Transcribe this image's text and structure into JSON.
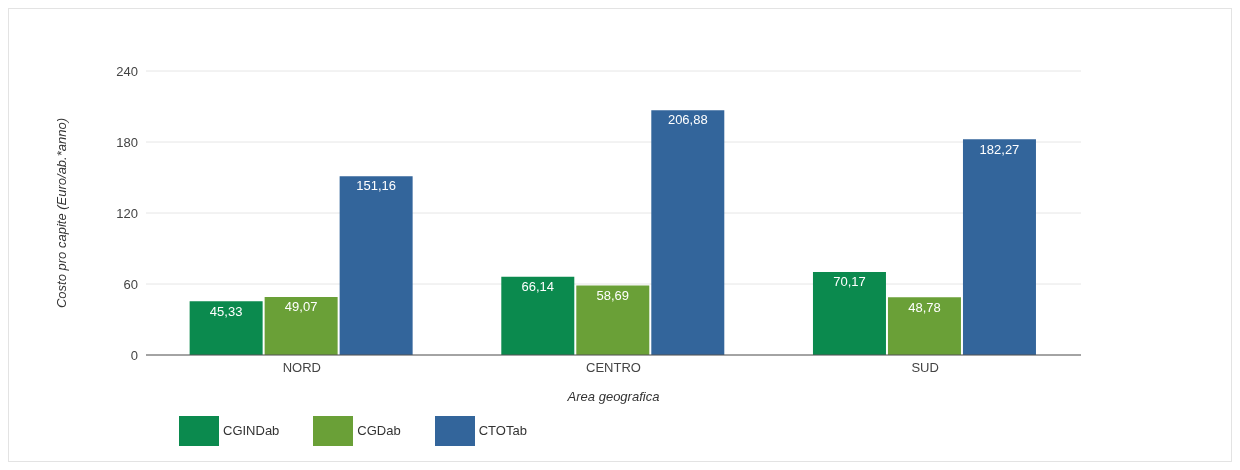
{
  "chart_data": {
    "type": "bar",
    "xlabel": "Area geografica",
    "ylabel": "Costo pro capite (Euro/ab.*anno)",
    "categories": [
      "NORD",
      "CENTRO",
      "SUD"
    ],
    "series": [
      {
        "name": "CGINDab",
        "color": "#0b8a4e",
        "values": [
          45.33,
          66.14,
          70.17
        ],
        "value_labels": [
          "45,33",
          "66,14",
          "70,17"
        ]
      },
      {
        "name": "CGDab",
        "color": "#6aa037",
        "values": [
          49.07,
          58.69,
          48.78
        ],
        "value_labels": [
          "49,07",
          "58,69",
          "48,78"
        ]
      },
      {
        "name": "CTOTab",
        "color": "#33659b",
        "values": [
          151.16,
          206.88,
          182.27
        ],
        "value_labels": [
          "151,16",
          "206,88",
          "182,27"
        ]
      }
    ],
    "ylim": [
      0,
      240
    ],
    "yticks": [
      0,
      60,
      120,
      180,
      240
    ],
    "grid": "y",
    "legend": "bottom left"
  }
}
